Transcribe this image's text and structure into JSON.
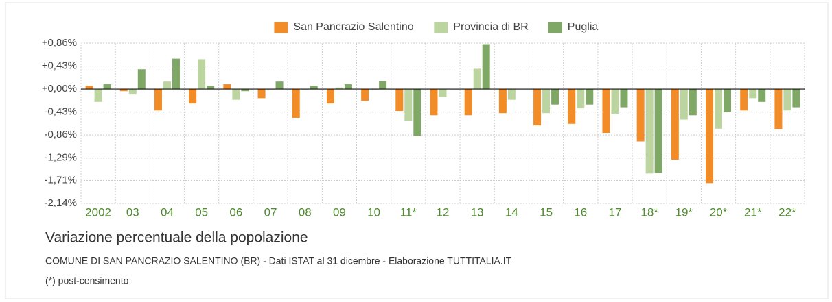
{
  "chart_data": {
    "type": "bar",
    "title": "Variazione percentuale della popolazione",
    "subtitle": "COMUNE DI SAN PANCRAZIO SALENTINO (BR) - Dati ISTAT al 31 dicembre - Elaborazione TUTTITALIA.IT",
    "note": "(*) post-censimento",
    "categories": [
      "2002",
      "03",
      "04",
      "05",
      "06",
      "07",
      "08",
      "09",
      "10",
      "11*",
      "12",
      "13",
      "14",
      "15",
      "16",
      "17",
      "18*",
      "19*",
      "20*",
      "21*",
      "22*"
    ],
    "series": [
      {
        "name": "San Pancrazio Salentino",
        "color": "#f28c28",
        "values": [
          0.06,
          -0.04,
          -0.4,
          -0.27,
          0.09,
          -0.17,
          -0.54,
          -0.27,
          -0.22,
          -0.41,
          -0.49,
          -0.49,
          -0.45,
          -0.68,
          -0.65,
          -0.82,
          -0.98,
          -1.32,
          -1.76,
          -0.4,
          -0.75
        ]
      },
      {
        "name": "Provincia di BR",
        "color": "#bcd5a0",
        "values": [
          -0.24,
          -0.09,
          0.14,
          0.56,
          -0.2,
          -0.01,
          -0.01,
          0.03,
          -0.01,
          -0.59,
          -0.15,
          0.38,
          -0.2,
          -0.45,
          -0.36,
          -0.47,
          -1.58,
          -0.57,
          -0.74,
          -0.17,
          -0.4
        ]
      },
      {
        "name": "Puglia",
        "color": "#7fa866",
        "values": [
          0.09,
          0.37,
          0.57,
          0.06,
          -0.04,
          0.14,
          0.06,
          0.09,
          0.15,
          -0.88,
          0.0,
          0.84,
          0.0,
          -0.29,
          -0.29,
          -0.34,
          -1.57,
          -0.49,
          -0.43,
          -0.24,
          -0.34
        ]
      }
    ],
    "ylim": [
      -2.14,
      0.86
    ],
    "yticks": [
      {
        "value": 0.86,
        "label": "+0,86%"
      },
      {
        "value": 0.43,
        "label": "+0,43%"
      },
      {
        "value": 0,
        "label": "+0,00%"
      },
      {
        "value": -0.43,
        "label": "-0,43%"
      },
      {
        "value": -0.86,
        "label": "-0,86%"
      },
      {
        "value": -1.29,
        "label": "-1,29%"
      },
      {
        "value": -1.71,
        "label": "-1,71%"
      },
      {
        "value": -2.14,
        "label": "-2,14%"
      }
    ],
    "grid": true,
    "legend": "top"
  }
}
